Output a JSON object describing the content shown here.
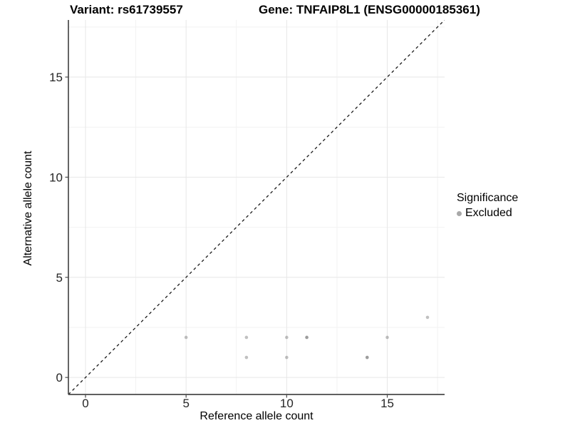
{
  "header": {
    "variant_title": "Variant: rs61739557",
    "gene_title": "Gene: TNFAIP8L1 (ENSG00000185361)"
  },
  "colors": {
    "background": "#ffffff",
    "grid_major": "#e7e7e7",
    "grid_minor": "#f2f2f2",
    "axis": "#4a4a4a",
    "tick_text": "#262626",
    "dashed_line": "#1a1a1a"
  },
  "chart_data": {
    "type": "scatter",
    "xlabel": "Reference allele count",
    "ylabel": "Alternative allele count",
    "xlim": [
      -0.85,
      17.85
    ],
    "ylim": [
      -0.85,
      17.85
    ],
    "major_ticks": [
      0,
      5,
      10,
      15
    ],
    "minor_ticks": [
      2.5,
      7.5,
      12.5,
      17.5
    ],
    "grid": true,
    "identity_line": true,
    "identity_line_style": "dashed",
    "point_color": "#737373",
    "point_opacity": 0.45,
    "point_radius": 2.3,
    "points": [
      {
        "x": 5,
        "y": 2,
        "n": 1
      },
      {
        "x": 8,
        "y": 1,
        "n": 1
      },
      {
        "x": 8,
        "y": 2,
        "n": 1
      },
      {
        "x": 10,
        "y": 1,
        "n": 1
      },
      {
        "x": 10,
        "y": 2,
        "n": 1
      },
      {
        "x": 11,
        "y": 2,
        "n": 2
      },
      {
        "x": 14,
        "y": 1,
        "n": 2
      },
      {
        "x": 15,
        "y": 2,
        "n": 1
      },
      {
        "x": 17,
        "y": 3,
        "n": 1
      }
    ],
    "legend": {
      "title": "Significance",
      "position": "right",
      "items": [
        {
          "label": "Excluded",
          "color": "#a8a8a8"
        }
      ]
    }
  }
}
